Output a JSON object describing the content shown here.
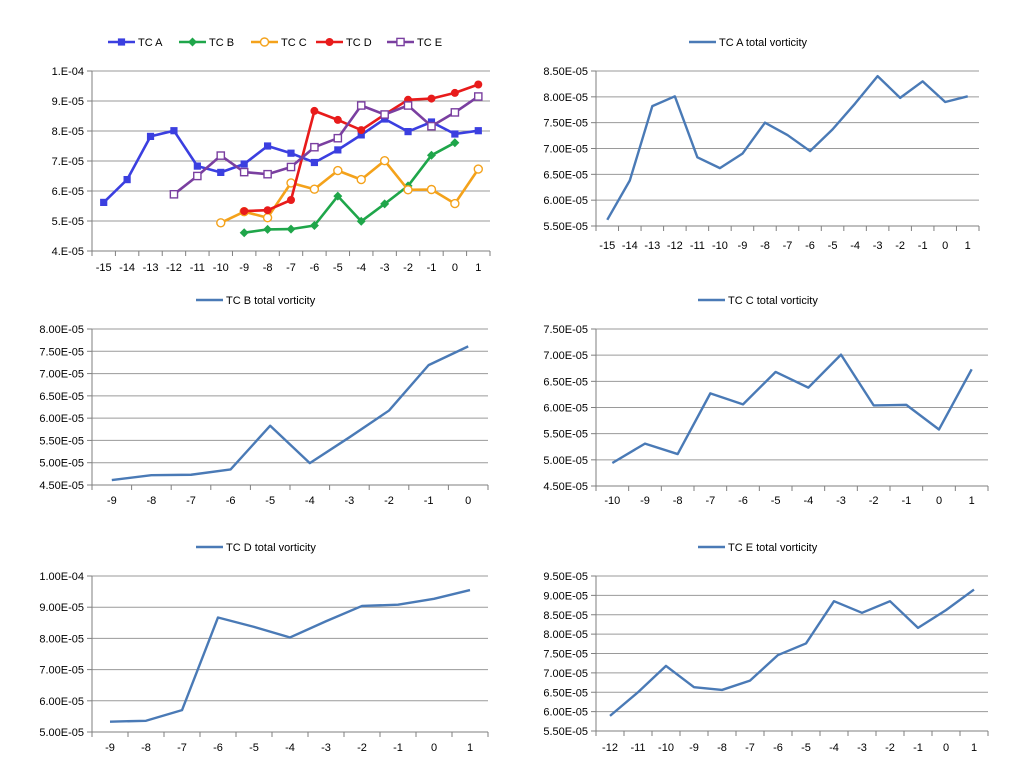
{
  "chart_data": [
    {
      "type": "line",
      "legend_position": "top",
      "grid": true,
      "x": [
        -15,
        -14,
        -13,
        -12,
        -11,
        -10,
        -9,
        -8,
        -7,
        -6,
        -5,
        -4,
        -3,
        -2,
        -1,
        0,
        1
      ],
      "x_ticks": [
        "-15",
        "-14",
        "-13",
        "-12",
        "-11",
        "-10",
        "-9",
        "-8",
        "-7",
        "-6",
        "-5",
        "-4",
        "-3",
        "-2",
        "-1",
        "0",
        "1"
      ],
      "ylim": [
        4e-05,
        0.0001
      ],
      "y_ticks": [
        4e-05,
        5e-05,
        6e-05,
        7e-05,
        8e-05,
        9e-05,
        0.0001
      ],
      "y_tick_labels": [
        "4.E-05",
        "5.E-05",
        "6.E-05",
        "7.E-05",
        "8.E-05",
        "9.E-05",
        "1.E-04"
      ],
      "series": [
        {
          "name": "TC A",
          "color": "#3b3fe0",
          "marker": "square-filled",
          "x": [
            -15,
            -14,
            -13,
            -12,
            -11,
            -10,
            -9,
            -8,
            -7,
            -6,
            -5,
            -4,
            -3,
            -2,
            -1,
            0,
            1
          ],
          "values": [
            5.62e-05,
            6.38e-05,
            7.82e-05,
            8.01e-05,
            6.83e-05,
            6.62e-05,
            6.9e-05,
            7.5e-05,
            7.26e-05,
            6.95e-05,
            7.37e-05,
            7.87e-05,
            8.4e-05,
            7.98e-05,
            8.3e-05,
            7.9e-05,
            8.01e-05
          ]
        },
        {
          "name": "TC B",
          "color": "#1fa64a",
          "marker": "diamond-filled",
          "x": [
            -9,
            -8,
            -7,
            -6,
            -5,
            -4,
            -3,
            -2,
            -1,
            0
          ],
          "values": [
            4.61e-05,
            4.72e-05,
            4.73e-05,
            4.85e-05,
            5.83e-05,
            4.99e-05,
            5.57e-05,
            6.17e-05,
            7.19e-05,
            7.61e-05
          ]
        },
        {
          "name": "TC C",
          "color": "#f4a21b",
          "marker": "circle-open",
          "x": [
            -10,
            -9,
            -8,
            -7,
            -6,
            -5,
            -4,
            -3,
            -2,
            -1,
            0,
            1
          ],
          "values": [
            4.94e-05,
            5.31e-05,
            5.11e-05,
            6.27e-05,
            6.06e-05,
            6.68e-05,
            6.38e-05,
            7.01e-05,
            6.04e-05,
            6.05e-05,
            5.58e-05,
            6.73e-05
          ]
        },
        {
          "name": "TC D",
          "color": "#e81b1b",
          "marker": "circle-filled",
          "x": [
            -9,
            -8,
            -7,
            -6,
            -5,
            -4,
            -3,
            -2,
            -1,
            0,
            1
          ],
          "values": [
            5.33e-05,
            5.36e-05,
            5.7e-05,
            8.67e-05,
            8.37e-05,
            8.03e-05,
            8.55e-05,
            9.04e-05,
            9.08e-05,
            9.27e-05,
            9.55e-05
          ]
        },
        {
          "name": "TC E",
          "color": "#7a3fa0",
          "marker": "square-open",
          "x": [
            -12,
            -11,
            -10,
            -9,
            -8,
            -7,
            -6,
            -5,
            -4,
            -3,
            -2,
            -1,
            0,
            1
          ],
          "values": [
            5.89e-05,
            6.5e-05,
            7.18e-05,
            6.63e-05,
            6.56e-05,
            6.8e-05,
            7.46e-05,
            7.76e-05,
            8.85e-05,
            8.55e-05,
            8.85e-05,
            8.16e-05,
            8.62e-05,
            9.15e-05
          ]
        }
      ]
    },
    {
      "type": "line",
      "legend_position": "top",
      "grid": true,
      "ylim": [
        5.5e-05,
        8.5e-05
      ],
      "y_ticks": [
        5.5e-05,
        6e-05,
        6.5e-05,
        7e-05,
        7.5e-05,
        8e-05,
        8.5e-05
      ],
      "y_tick_labels": [
        "5.50E-05",
        "6.00E-05",
        "6.50E-05",
        "7.00E-05",
        "7.50E-05",
        "8.00E-05",
        "8.50E-05"
      ],
      "x_ticks": [
        "-15",
        "-14",
        "-13",
        "-12",
        "-11",
        "-10",
        "-9",
        "-8",
        "-7",
        "-6",
        "-5",
        "-4",
        "-3",
        "-2",
        "-1",
        "0",
        "1"
      ],
      "series": [
        {
          "name": "TC A total vorticity",
          "color": "#4a7ab6",
          "values": [
            5.62e-05,
            6.38e-05,
            7.82e-05,
            8.01e-05,
            6.83e-05,
            6.62e-05,
            6.9e-05,
            7.5e-05,
            7.26e-05,
            6.95e-05,
            7.37e-05,
            7.87e-05,
            8.4e-05,
            7.98e-05,
            8.3e-05,
            7.9e-05,
            8.01e-05
          ]
        }
      ]
    },
    {
      "type": "line",
      "legend_position": "top",
      "grid": true,
      "ylim": [
        4.5e-05,
        8e-05
      ],
      "y_ticks": [
        4.5e-05,
        5e-05,
        5.5e-05,
        6e-05,
        6.5e-05,
        7e-05,
        7.5e-05,
        8e-05
      ],
      "y_tick_labels": [
        "4.50E-05",
        "5.00E-05",
        "5.50E-05",
        "6.00E-05",
        "6.50E-05",
        "7.00E-05",
        "7.50E-05",
        "8.00E-05"
      ],
      "x_ticks": [
        "-9",
        "-8",
        "-7",
        "-6",
        "-5",
        "-4",
        "-3",
        "-2",
        "-1",
        "0"
      ],
      "series": [
        {
          "name": "TC B total vorticity",
          "color": "#4a7ab6",
          "values": [
            4.61e-05,
            4.72e-05,
            4.73e-05,
            4.85e-05,
            5.83e-05,
            4.99e-05,
            5.57e-05,
            6.17e-05,
            7.19e-05,
            7.61e-05
          ]
        }
      ]
    },
    {
      "type": "line",
      "legend_position": "top",
      "grid": true,
      "ylim": [
        4.5e-05,
        7.5e-05
      ],
      "y_ticks": [
        4.5e-05,
        5e-05,
        5.5e-05,
        6e-05,
        6.5e-05,
        7e-05,
        7.5e-05
      ],
      "y_tick_labels": [
        "4.50E-05",
        "5.00E-05",
        "5.50E-05",
        "6.00E-05",
        "6.50E-05",
        "7.00E-05",
        "7.50E-05"
      ],
      "x_ticks": [
        "-10",
        "-9",
        "-8",
        "-7",
        "-6",
        "-5",
        "-4",
        "-3",
        "-2",
        "-1",
        "0",
        "1"
      ],
      "series": [
        {
          "name": "TC C total vorticity",
          "color": "#4a7ab6",
          "values": [
            4.94e-05,
            5.31e-05,
            5.11e-05,
            6.27e-05,
            6.06e-05,
            6.68e-05,
            6.38e-05,
            7.01e-05,
            6.04e-05,
            6.05e-05,
            5.58e-05,
            6.73e-05
          ]
        }
      ]
    },
    {
      "type": "line",
      "legend_position": "top",
      "grid": true,
      "ylim": [
        5e-05,
        0.0001
      ],
      "y_ticks": [
        5e-05,
        6e-05,
        7e-05,
        8e-05,
        9e-05,
        0.0001
      ],
      "y_tick_labels": [
        "5.00E-05",
        "6.00E-05",
        "7.00E-05",
        "8.00E-05",
        "9.00E-05",
        "1.00E-04"
      ],
      "x_ticks": [
        "-9",
        "-8",
        "-7",
        "-6",
        "-5",
        "-4",
        "-3",
        "-2",
        "-1",
        "0",
        "1"
      ],
      "series": [
        {
          "name": "TC D total vorticity",
          "color": "#4a7ab6",
          "values": [
            5.33e-05,
            5.36e-05,
            5.7e-05,
            8.67e-05,
            8.37e-05,
            8.03e-05,
            8.55e-05,
            9.04e-05,
            9.08e-05,
            9.27e-05,
            9.55e-05
          ]
        }
      ]
    },
    {
      "type": "line",
      "legend_position": "top",
      "grid": true,
      "ylim": [
        5.5e-05,
        9.5e-05
      ],
      "y_ticks": [
        5.5e-05,
        6e-05,
        6.5e-05,
        7e-05,
        7.5e-05,
        8e-05,
        8.5e-05,
        9e-05,
        9.5e-05
      ],
      "y_tick_labels": [
        "5.50E-05",
        "6.00E-05",
        "6.50E-05",
        "7.00E-05",
        "7.50E-05",
        "8.00E-05",
        "8.50E-05",
        "9.00E-05",
        "9.50E-05"
      ],
      "x_ticks": [
        "-12",
        "-11",
        "-10",
        "-9",
        "-8",
        "-7",
        "-6",
        "-5",
        "-4",
        "-3",
        "-2",
        "-1",
        "0",
        "1"
      ],
      "series": [
        {
          "name": "TC E total vorticity",
          "color": "#4a7ab6",
          "values": [
            5.89e-05,
            6.5e-05,
            7.18e-05,
            6.63e-05,
            6.56e-05,
            6.8e-05,
            7.46e-05,
            7.76e-05,
            8.85e-05,
            8.55e-05,
            8.85e-05,
            8.16e-05,
            8.62e-05,
            9.15e-05
          ]
        }
      ]
    }
  ]
}
